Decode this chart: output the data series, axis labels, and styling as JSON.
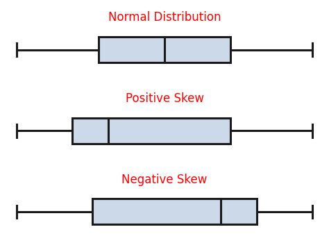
{
  "titles": [
    "Normal Distribution",
    "Positive Skew",
    "Negative Skew"
  ],
  "title_color": "#FF0000",
  "title_fontsize": 12,
  "box_facecolor": "#ccd9e8",
  "box_edgecolor": "#1a1a1a",
  "whisker_color": "#1a1a1a",
  "line_width": 2.2,
  "background_color": "#ffffff",
  "plots": [
    {
      "label": "Normal Distribution",
      "min": 0.5,
      "q1": 3.0,
      "median": 5.0,
      "q3": 7.0,
      "max": 9.5
    },
    {
      "label": "Positive Skew",
      "min": 0.5,
      "q1": 2.2,
      "median": 3.3,
      "q3": 7.0,
      "max": 9.5
    },
    {
      "label": "Negative Skew",
      "min": 0.5,
      "q1": 2.8,
      "median": 6.7,
      "q3": 7.8,
      "max": 9.5
    }
  ]
}
